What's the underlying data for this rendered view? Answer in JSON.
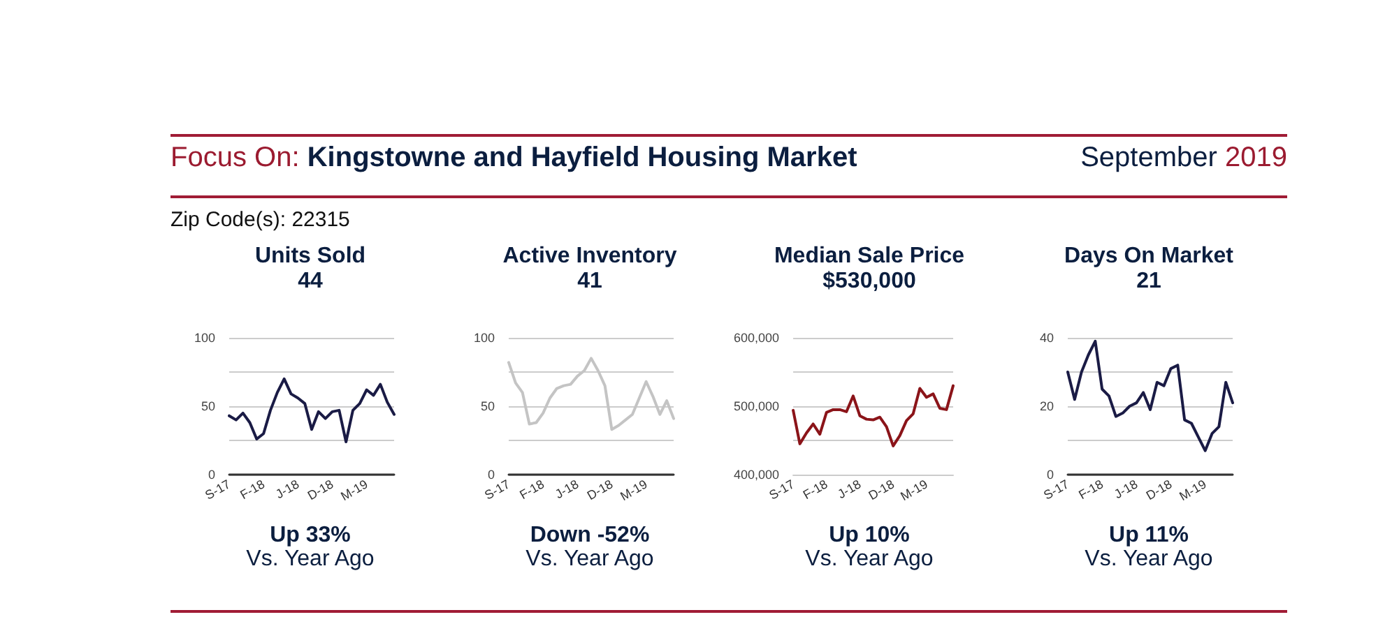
{
  "chart_data": [
    {
      "type": "line",
      "title": "Units Sold",
      "subtitle": "44",
      "annotations": [
        "Focus On:",
        "Kingstowne and Hayfield Housing Market",
        "September",
        "2019",
        "Zip Code(s): 22315",
        "Up 33%",
        "Vs. Year Ago"
      ],
      "categories": [
        "S-17",
        null,
        null,
        null,
        null,
        "F-18",
        null,
        null,
        null,
        null,
        "J-18",
        null,
        null,
        null,
        null,
        "D-18",
        null,
        null,
        null,
        null,
        "M-19",
        null,
        null,
        null,
        null
      ],
      "values": [
        43,
        40,
        45,
        38,
        26,
        30,
        47,
        60,
        70,
        59,
        56,
        52,
        33,
        46,
        41,
        46,
        47,
        24,
        47,
        52,
        62,
        58,
        66,
        53,
        44
      ],
      "color": "#1a1b45",
      "ylim": [
        0,
        100
      ],
      "yticks": [
        0,
        {
          "value": 25,
          "label": null
        },
        50,
        {
          "value": 75,
          "label": null
        },
        100
      ],
      "grid": "y"
    },
    {
      "type": "line",
      "title": "Active Inventory",
      "subtitle": "41",
      "annotations": [
        "Down -52%",
        "Vs. Year Ago"
      ],
      "categories": [
        "S-17",
        null,
        null,
        null,
        null,
        "F-18",
        null,
        null,
        null,
        null,
        "J-18",
        null,
        null,
        null,
        null,
        "D-18",
        null,
        null,
        null,
        null,
        "M-19",
        null,
        null,
        null,
        null
      ],
      "values": [
        82,
        67,
        60,
        37,
        38,
        45,
        56,
        63,
        65,
        66,
        72,
        76,
        85,
        76,
        65,
        33,
        36,
        40,
        44,
        56,
        68,
        57,
        44,
        54,
        41
      ],
      "color": "#c4c4c4",
      "ylim": [
        0,
        100
      ],
      "yticks": [
        0,
        {
          "value": 25,
          "label": null
        },
        50,
        {
          "value": 75,
          "label": null
        },
        100
      ],
      "grid": "y"
    },
    {
      "type": "line",
      "title": "Median Sale Price",
      "subtitle": "$530,000",
      "annotations": [
        "Up 10%",
        "Vs. Year Ago"
      ],
      "categories": [
        "S-17",
        null,
        null,
        null,
        null,
        "F-18",
        null,
        null,
        null,
        null,
        "J-18",
        null,
        null,
        null,
        null,
        "D-18",
        null,
        null,
        null,
        null,
        "M-19",
        null,
        null,
        null,
        null
      ],
      "values": [
        494000,
        445000,
        461000,
        474000,
        459000,
        491000,
        495000,
        495000,
        492000,
        515000,
        486000,
        481000,
        480000,
        484000,
        470000,
        442000,
        457000,
        479000,
        489000,
        526000,
        513000,
        518000,
        497000,
        495000,
        530000
      ],
      "color": "#8b1419",
      "ylim": [
        400000,
        600000
      ],
      "yticks": [
        {
          "value": 400000,
          "label": "400,000"
        },
        {
          "value": 450000,
          "label": null
        },
        {
          "value": 500000,
          "label": "500,000"
        },
        {
          "value": 550000,
          "label": null
        },
        {
          "value": 600000,
          "label": "600,000"
        }
      ],
      "grid": "y"
    },
    {
      "type": "line",
      "title": "Days On Market",
      "subtitle": "21",
      "annotations": [
        "Up 11%",
        "Vs. Year Ago"
      ],
      "categories": [
        "S-17",
        null,
        null,
        null,
        null,
        "F-18",
        null,
        null,
        null,
        null,
        "J-18",
        null,
        null,
        null,
        null,
        "D-18",
        null,
        null,
        null,
        null,
        "M-19",
        null,
        null,
        null,
        null
      ],
      "values": [
        30,
        22,
        30,
        35,
        39,
        25,
        23,
        17,
        18,
        20,
        21,
        24,
        19,
        27,
        26,
        31,
        32,
        16,
        15,
        11,
        7,
        12,
        14,
        27,
        21
      ],
      "color": "#1a1b45",
      "ylim": [
        0,
        40
      ],
      "yticks": [
        0,
        {
          "value": 10,
          "label": null
        },
        20,
        {
          "value": 30,
          "label": null
        },
        40
      ],
      "grid": "y"
    }
  ]
}
